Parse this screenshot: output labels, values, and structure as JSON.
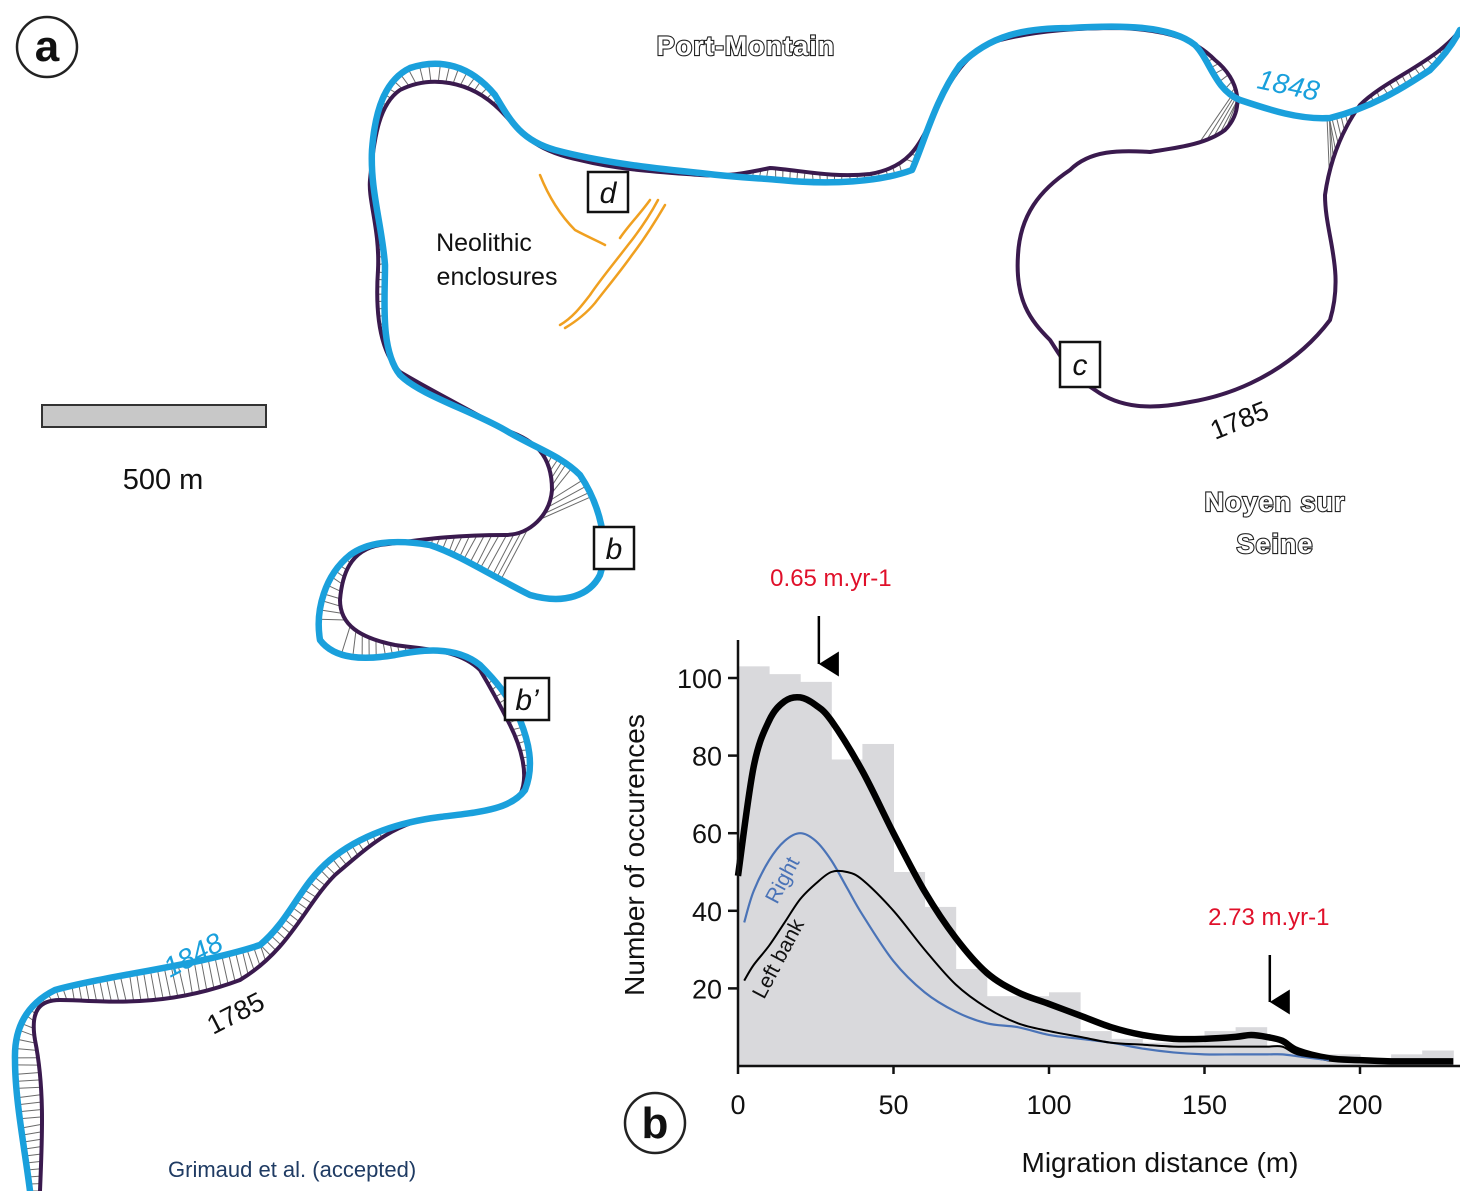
{
  "panels": {
    "a": "a",
    "b": "b"
  },
  "map": {
    "towns": [
      "Port-Montain",
      "Noyen sur",
      "Seine"
    ],
    "channel_labels": {
      "y1848_top": "1848",
      "y1848_left": "1848",
      "y1785_right": "1785",
      "y1785_left": "1785"
    },
    "sites": [
      "d",
      "c",
      "b",
      "b’"
    ],
    "neolithic": [
      "Neolithic",
      "enclosures"
    ],
    "scale_bar": "500 m",
    "colors": {
      "channel_1848": "#1aa0dc",
      "channel_1785": "#3a1a4e",
      "enclosures": "#f0a020"
    }
  },
  "credit": "Grimaud et al. (accepted)",
  "chart_data": {
    "type": "bar",
    "title": "",
    "xlabel": "Migration distance (m)",
    "ylabel": "Number of occurences",
    "xlim": [
      0,
      232
    ],
    "ylim": [
      0,
      110
    ],
    "x_ticks": [
      "0",
      "50",
      "100",
      "150",
      "200"
    ],
    "y_ticks": [
      "20",
      "40",
      "60",
      "80",
      "100"
    ],
    "histogram": {
      "bin_edges": [
        0,
        10,
        20,
        30,
        40,
        50,
        60,
        70,
        80,
        90,
        100,
        110,
        120,
        130,
        140,
        150,
        160,
        170,
        180,
        190,
        200,
        210,
        220,
        230
      ],
      "values": [
        103,
        101,
        99,
        79,
        83,
        50,
        41,
        25,
        18,
        18,
        19,
        9,
        7,
        6,
        6,
        9,
        10,
        5,
        3,
        3,
        2,
        3,
        4
      ],
      "color": "#d9d9dc"
    },
    "series": [
      {
        "color": "#000000",
        "x": [
          0,
          5,
          10,
          15,
          20,
          25,
          30,
          40,
          50,
          60,
          70,
          80,
          90,
          100,
          110,
          120,
          130,
          140,
          150,
          160,
          165,
          170,
          175,
          180,
          190,
          200,
          210,
          220,
          230
        ],
        "y": [
          49,
          77,
          89,
          94,
          95,
          93,
          89,
          76,
          60,
          45,
          33,
          24,
          19,
          16,
          13,
          10,
          8,
          7,
          7,
          7.5,
          8,
          7.5,
          6.5,
          4,
          2,
          1.5,
          1.2,
          1.2,
          1.2
        ]
      },
      {
        "name": "Right",
        "color": "#4a73b7",
        "x": [
          2,
          5,
          10,
          15,
          20,
          25,
          30,
          35,
          40,
          50,
          60,
          70,
          80,
          90,
          100,
          110,
          120,
          130,
          140,
          150,
          160,
          170,
          175,
          180,
          190
        ],
        "y": [
          37,
          45,
          53,
          58,
          60,
          58,
          53,
          46,
          39,
          27,
          19,
          14,
          11,
          10,
          8,
          7,
          6,
          4.5,
          3.5,
          3,
          3,
          3,
          3,
          2.5,
          1.5
        ]
      },
      {
        "name": "Left bank",
        "color": "#000000",
        "x": [
          2,
          5,
          10,
          15,
          20,
          25,
          30,
          35,
          40,
          50,
          60,
          70,
          80,
          90,
          100,
          110,
          120,
          130,
          140,
          150,
          160,
          170,
          175,
          180,
          190
        ],
        "y": [
          22,
          26,
          31,
          37,
          43,
          47,
          50,
          50,
          48,
          40,
          30,
          21,
          15,
          11,
          9,
          7.5,
          6,
          5.5,
          5,
          5,
          5,
          5,
          5,
          3,
          1.8
        ]
      }
    ],
    "annotations": [
      {
        "text": "0.65 m.yr-1",
        "x": 26,
        "color": "#e0102a"
      },
      {
        "text": "2.73 m.yr-1",
        "x": 171,
        "color": "#e0102a"
      }
    ]
  }
}
